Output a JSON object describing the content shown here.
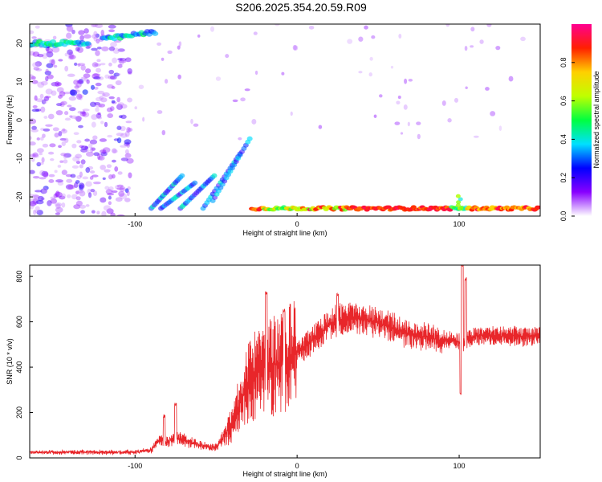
{
  "title": "S206.2025.354.20.59.R09",
  "chart_data": [
    {
      "type": "heatmap",
      "xlabel": "Height of straight line (km)",
      "ylabel": "Frequency (Hz)",
      "xlim": [
        -165,
        150
      ],
      "ylim": [
        -25,
        25
      ],
      "xticks": [
        -100,
        0,
        100
      ],
      "yticks": [
        -20,
        -10,
        0,
        10,
        20
      ],
      "colorbar": {
        "label": "Normalized spectral amplitude",
        "range": [
          0,
          1
        ],
        "ticks": [
          "0.0",
          "0.2",
          "0.4",
          "0.6",
          "0.8"
        ],
        "tick_values": [
          0,
          0.2,
          0.4,
          0.6,
          0.8
        ],
        "colors": [
          "#ffffff",
          "#8800ff",
          "#0000ff",
          "#00e0ff",
          "#00ff40",
          "#c0ff00",
          "#ffd000",
          "#ff2000",
          "#ff0090"
        ]
      },
      "features": [
        {
          "x": [
            -165,
            -130
          ],
          "y": [
            20,
            20
          ],
          "amplitude": 0.5
        },
        {
          "x": [
            -120,
            -88
          ],
          "y": [
            21,
            23
          ],
          "amplitude": 0.5
        },
        {
          "x": [
            -90,
            -60
          ],
          "y": [
            -23,
            -15
          ],
          "amplitude": 0.5
        },
        {
          "x": [
            -60,
            -28
          ],
          "y": [
            -23,
            -4
          ],
          "amplitude": 0.4
        },
        {
          "x": [
            -25,
            150
          ],
          "y": [
            -23,
            -23
          ],
          "amplitude": 0.9
        },
        {
          "x": [
            97,
            102
          ],
          "y": [
            -23,
            -20
          ],
          "amplitude": 0.6
        }
      ]
    },
    {
      "type": "line",
      "xlabel": "Height of straight line (km)",
      "ylabel": "SNR (10 * v/v)",
      "xlim": [
        -165,
        150
      ],
      "ylim": [
        0,
        850
      ],
      "xticks": [
        -100,
        0,
        100
      ],
      "yticks": [
        0,
        200,
        400,
        600,
        800
      ],
      "color": "#e8262a",
      "envelope": {
        "x": [
          -165,
          -100,
          -90,
          -85,
          -80,
          -75,
          -70,
          -60,
          -50,
          -40,
          -35,
          -30,
          -25,
          -20,
          -10,
          0,
          10,
          20,
          30,
          40,
          50,
          60,
          70,
          80,
          90,
          95,
          100,
          102,
          105,
          110,
          120,
          130,
          140,
          150
        ],
        "y": [
          25,
          25,
          35,
          80,
          70,
          90,
          80,
          55,
          45,
          150,
          250,
          330,
          370,
          400,
          420,
          460,
          520,
          590,
          620,
          615,
          600,
          570,
          545,
          530,
          520,
          520,
          510,
          500,
          520,
          535,
          540,
          540,
          535,
          540
        ]
      },
      "spikes": [
        {
          "x": -75,
          "y": 235
        },
        {
          "x": -82,
          "y": 185
        },
        {
          "x": -19,
          "y": 725
        },
        {
          "x": -8,
          "y": 650
        },
        {
          "x": 25,
          "y": 720
        },
        {
          "x": 101,
          "y": 285
        },
        {
          "x": 102,
          "y": 845
        },
        {
          "x": 104,
          "y": 790
        }
      ]
    }
  ]
}
